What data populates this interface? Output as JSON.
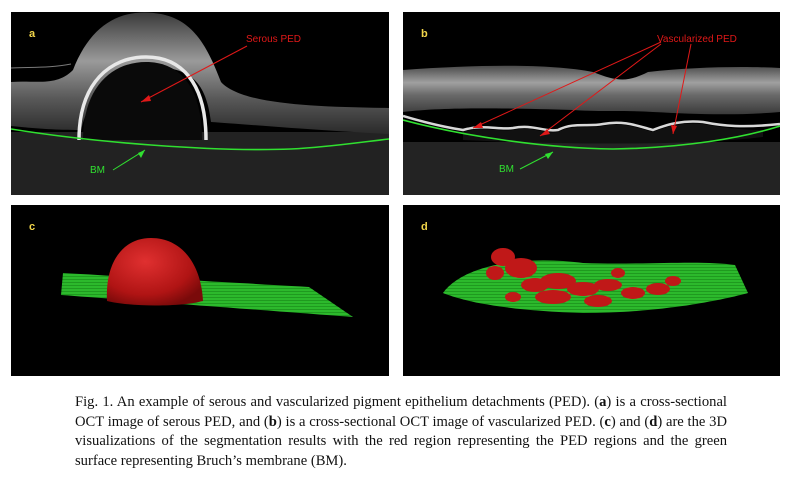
{
  "figure": {
    "panels": {
      "a": {
        "label": "a",
        "annotations": {
          "ped": "Serous PED",
          "bm": "BM"
        }
      },
      "b": {
        "label": "b",
        "annotations": {
          "ped": "Vascularized PED",
          "bm": "BM"
        }
      },
      "c": {
        "label": "c"
      },
      "d": {
        "label": "d"
      }
    },
    "caption": {
      "t1": "Fig. 1. An example of serous and vascularized pigment epithelium detachments (PED). (",
      "b1": "a",
      "t2": ") is a cross-sectional OCT image of serous PED, and (",
      "b2": "b",
      "t3": ") is a cross-sectional OCT image of vascularized PED. (",
      "b3": "c",
      "t4": ") and (",
      "b4": "d",
      "t5": ") are the 3D visualizations of the segmentation results with the red region representing the PED regions and the green surface representing Bruch’s membrane (BM)."
    },
    "colors": {
      "ped": "#e01818",
      "bm": "#30e030",
      "label": "#f2d64a",
      "background": "#000000"
    }
  }
}
